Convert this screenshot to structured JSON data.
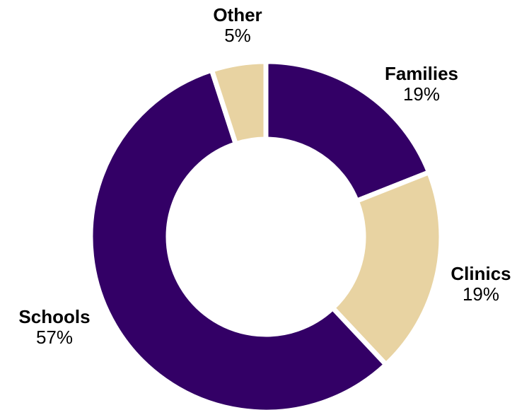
{
  "chart_data": {
    "type": "pie",
    "donut": true,
    "slices": [
      {
        "label": "Families",
        "value": 19,
        "value_label": "19%",
        "color": "#330066"
      },
      {
        "label": "Clinics",
        "value": 19,
        "value_label": "19%",
        "color": "#E8D3A2"
      },
      {
        "label": "Schools",
        "value": 57,
        "value_label": "57%",
        "color": "#330066"
      },
      {
        "label": "Other",
        "value": 5,
        "value_label": "5%",
        "color": "#E8D3A2"
      }
    ],
    "start": "12 o'clock",
    "direction": "clockwise",
    "legend": "none"
  }
}
